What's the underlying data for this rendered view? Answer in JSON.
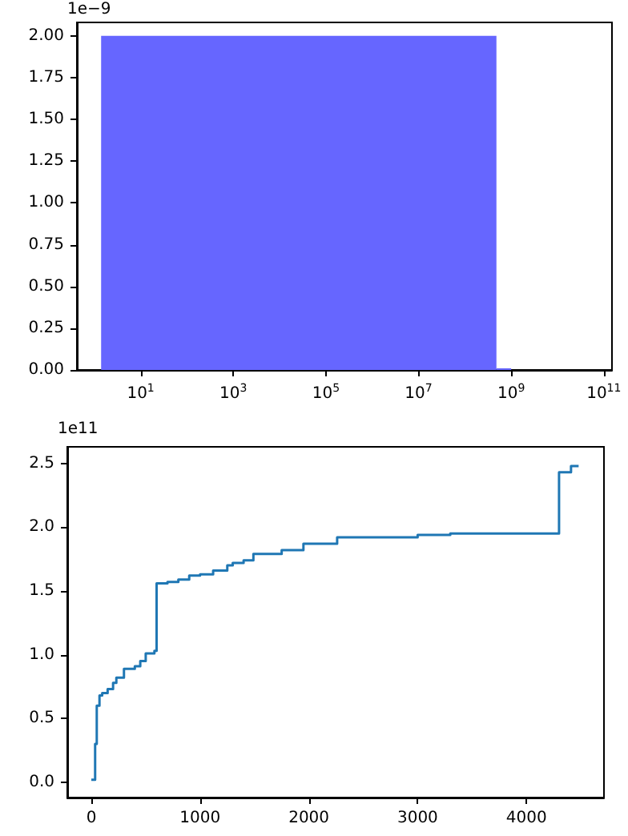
{
  "chart_data": [
    {
      "type": "histogram",
      "bins": [
        1.4,
        480000000.0,
        1000000000.0
      ],
      "values": [
        2.0,
        0.01
      ],
      "color": "#6666ff",
      "log": "x",
      "xlim": [
        0.42,
        150000000000.0
      ],
      "xticks": [
        {
          "value": 10,
          "label": "10$^{1}$"
        },
        {
          "value": 1000,
          "label": "10$^{3}$"
        },
        {
          "value": 100000.0,
          "label": "10$^{5}$"
        },
        {
          "value": 10000000.0,
          "label": "10$^{7}$"
        },
        {
          "value": 1000000000.0,
          "label": "10$^{9}$"
        },
        {
          "value": 100000000000.0,
          "label": "10$^{11}$"
        }
      ],
      "ylim": [
        0,
        2.08
      ],
      "yticks": [
        {
          "value": 0,
          "label": "0.00"
        },
        0.25,
        {
          "value": 0.5,
          "label": "0.50"
        },
        0.75,
        {
          "value": 1,
          "label": "1.00"
        },
        1.25,
        {
          "value": 1.5,
          "label": "1.50"
        },
        1.75,
        {
          "value": 2,
          "label": "2.00"
        }
      ],
      "annotations": [
        "1e−9"
      ],
      "grid": false
    },
    {
      "type": "step",
      "color": "#1f77b4",
      "x": [
        0,
        35,
        50,
        75,
        100,
        150,
        200,
        230,
        300,
        400,
        450,
        500,
        580,
        600,
        700,
        800,
        900,
        1000,
        1120,
        1250,
        1300,
        1400,
        1490,
        1750,
        1950,
        2260,
        3000,
        3300,
        4300,
        4410,
        4480
      ],
      "values": [
        0.02,
        0.3,
        0.6,
        0.68,
        0.7,
        0.73,
        0.78,
        0.82,
        0.89,
        0.91,
        0.95,
        1.01,
        1.03,
        1.56,
        1.57,
        1.59,
        1.62,
        1.63,
        1.66,
        1.7,
        1.72,
        1.74,
        1.79,
        1.82,
        1.87,
        1.92,
        1.94,
        1.95,
        2.43,
        2.48,
        2.48
      ],
      "xlim": [
        -221,
        4713
      ],
      "xticks": [
        0,
        1000,
        2000,
        3000,
        4000
      ],
      "ylim": [
        -0.12,
        2.63
      ],
      "yticks": [
        {
          "value": 0,
          "label": "0.0"
        },
        0.5,
        {
          "value": 1,
          "label": "1.0"
        },
        1.5,
        {
          "value": 2,
          "label": "2.0"
        },
        2.5
      ],
      "annotations": [
        "1e11"
      ],
      "grid": false,
      "marker": "none"
    }
  ]
}
